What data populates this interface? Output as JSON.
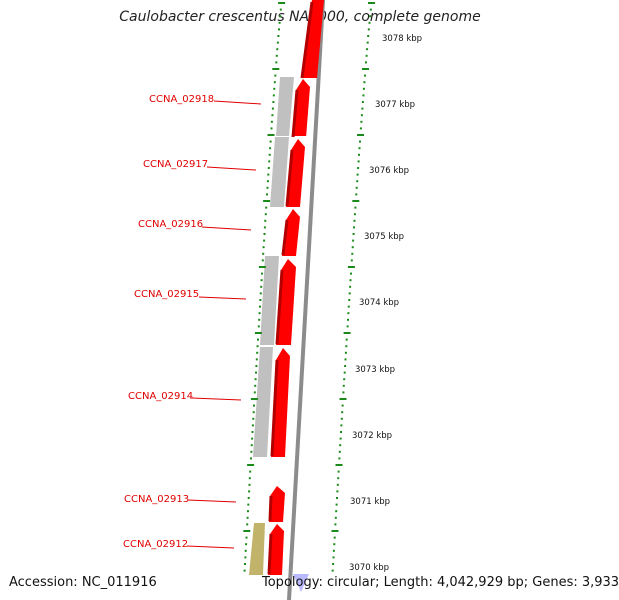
{
  "header": {
    "title": "Caulobacter crescentus NA1000, complete genome"
  },
  "footer": {
    "accession": "Accession: NC_011916",
    "topology": "Topology: circular; Length: 4,042,929 bp; Genes: 3,933"
  },
  "scale_labels": [
    "3078 kbp",
    "3077 kbp",
    "3076 kbp",
    "3075 kbp",
    "3074 kbp",
    "3073 kbp",
    "3072 kbp",
    "3071 kbp",
    "3070 kbp"
  ],
  "genes": [
    {
      "label": "CCNA_02918"
    },
    {
      "label": "CCNA_02917"
    },
    {
      "label": "CCNA_02916"
    },
    {
      "label": "CCNA_02915"
    },
    {
      "label": "CCNA_02914"
    },
    {
      "label": "CCNA_02913"
    },
    {
      "label": "CCNA_02912"
    }
  ],
  "colors": {
    "cds": "#ff0000",
    "cds_shade": "#b30000",
    "gene_gray": "#c0c0c0",
    "gene_olive": "#c2b36a",
    "backbone": "#8c8c8c",
    "tick_green": "#1a8a1a",
    "label_red": "#e00000"
  }
}
